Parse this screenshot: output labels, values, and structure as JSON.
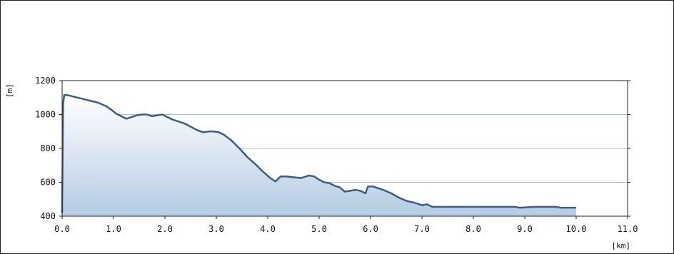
{
  "chart_data": {
    "type": "area",
    "xlabel": "[km]",
    "ylabel": "[m]",
    "xlim": [
      0,
      11
    ],
    "ylim": [
      400,
      1200
    ],
    "x_ticks": [
      "0.0",
      "1.0",
      "2.0",
      "3.0",
      "4.0",
      "5.0",
      "6.0",
      "7.0",
      "8.0",
      "9.0",
      "10.0",
      "11.0"
    ],
    "y_ticks": [
      "400",
      "600",
      "800",
      "1000",
      "1200"
    ],
    "grid": "horizontal",
    "colors": {
      "line": "#3a5f80",
      "fill_top": "#ffffff",
      "fill_bottom": "#b4cbe2",
      "grid": "#a8bfd8",
      "axis": "#222222"
    },
    "series": [
      {
        "x": [
          0.0,
          0.02,
          0.04,
          0.1,
          0.3,
          0.5,
          0.7,
          0.85,
          0.95,
          1.05,
          1.15,
          1.25,
          1.35,
          1.45,
          1.55,
          1.65,
          1.75,
          1.85,
          1.95,
          2.05,
          2.15,
          2.25,
          2.4,
          2.55,
          2.65,
          2.75,
          2.85,
          2.95,
          3.05,
          3.15,
          3.3,
          3.45,
          3.6,
          3.75,
          3.9,
          4.05,
          4.15,
          4.2,
          4.25,
          4.35,
          4.5,
          4.65,
          4.8,
          4.9,
          5.0,
          5.1,
          5.2,
          5.3,
          5.4,
          5.5,
          5.6,
          5.7,
          5.8,
          5.9,
          5.95,
          6.05,
          6.15,
          6.25,
          6.4,
          6.55,
          6.7,
          6.85,
          7.0,
          7.1,
          7.2,
          7.4,
          8.0,
          8.5,
          8.8,
          8.9,
          9.2,
          9.6,
          9.7,
          10.0
        ],
        "values": [
          420,
          1060,
          1115,
          1115,
          1100,
          1085,
          1070,
          1050,
          1030,
          1005,
          990,
          975,
          985,
          995,
          1000,
          1000,
          990,
          995,
          1000,
          985,
          970,
          960,
          945,
          920,
          905,
          895,
          900,
          900,
          895,
          880,
          845,
          800,
          750,
          710,
          665,
          625,
          605,
          620,
          635,
          635,
          630,
          625,
          640,
          635,
          615,
          600,
          595,
          580,
          570,
          545,
          550,
          555,
          550,
          535,
          575,
          575,
          565,
          555,
          535,
          510,
          490,
          480,
          465,
          470,
          455,
          455,
          455,
          455,
          455,
          450,
          455,
          455,
          450,
          450
        ]
      }
    ]
  }
}
